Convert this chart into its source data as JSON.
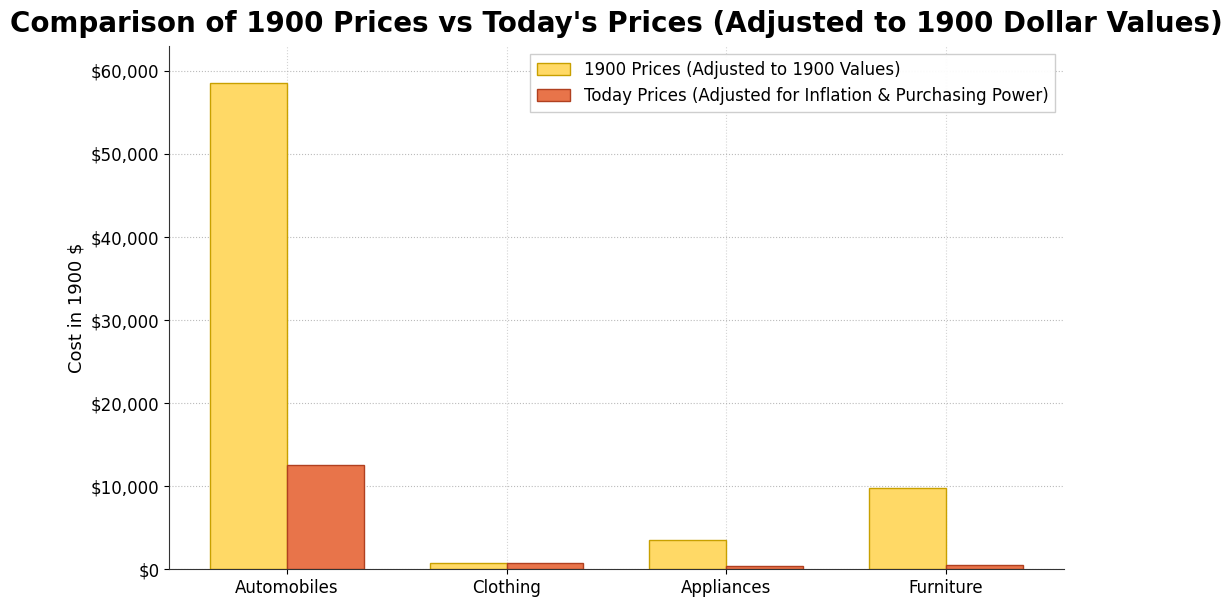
{
  "title": "Comparison of 1900 Prices vs Today's Prices (Adjusted to 1900 Dollar Values)",
  "categories": [
    "Automobiles",
    "Clothing",
    "Appliances",
    "Furniture"
  ],
  "prices_1900": [
    58500,
    800,
    3500,
    9800
  ],
  "prices_today_adjusted": [
    12500,
    750,
    400,
    500
  ],
  "color_1900": "#FFD966",
  "color_today": "#E8744A",
  "ylabel": "Cost in 1900 $",
  "legend_1900": "1900 Prices (Adjusted to 1900 Values)",
  "legend_today": "Today Prices (Adjusted for Inflation & Purchasing Power)",
  "ylim": [
    0,
    63000
  ],
  "background_color": "#ffffff",
  "title_fontsize": 20,
  "axis_label_fontsize": 13,
  "tick_fontsize": 12,
  "legend_fontsize": 12,
  "bar_edge_color_1900": "#C8A000",
  "bar_edge_color_today": "#B04020"
}
